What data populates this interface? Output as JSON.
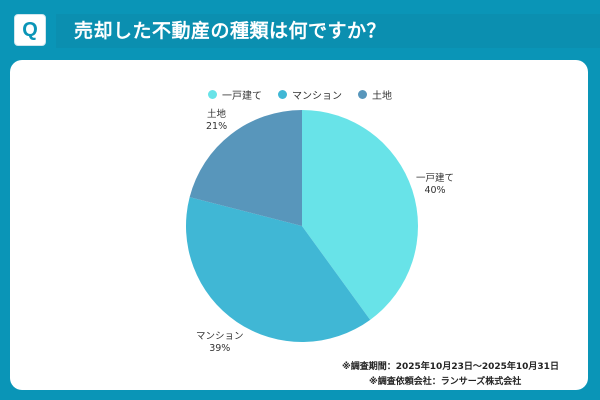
{
  "header": {
    "badge": "Q",
    "title": "売却した不動産の種類は何ですか？"
  },
  "colors": {
    "background": "#0a95b7",
    "card": "#ffffff",
    "slice_1": "#68e3e8",
    "slice_2": "#40b7d5",
    "slice_3": "#5896bb"
  },
  "legend": [
    {
      "label": "一戸建て",
      "color": "#68e3e8"
    },
    {
      "label": "マンション",
      "color": "#40b7d5"
    },
    {
      "label": "土地",
      "color": "#5896bb"
    }
  ],
  "labels": [
    {
      "name": "一戸建て",
      "pct": "40%"
    },
    {
      "name": "マンション",
      "pct": "39%"
    },
    {
      "name": "土地",
      "pct": "21%"
    }
  ],
  "footnotes": {
    "period": "※調査期間：2025年10月23日〜2025年10月31日",
    "client": "※調査依頼会社：ランサーズ株式会社"
  },
  "chart_data": {
    "type": "pie",
    "title": "売却した不動産の種類は何ですか？",
    "categories": [
      "一戸建て",
      "マンション",
      "土地"
    ],
    "values": [
      40,
      39,
      21
    ],
    "unit": "%",
    "colors": [
      "#68e3e8",
      "#40b7d5",
      "#5896bb"
    ],
    "legend_position": "top",
    "start_angle": "12 o'clock, clockwise",
    "notes": [
      "※調査期間：2025年10月23日〜2025年10月31日",
      "※調査依頼会社：ランサーズ株式会社"
    ]
  }
}
